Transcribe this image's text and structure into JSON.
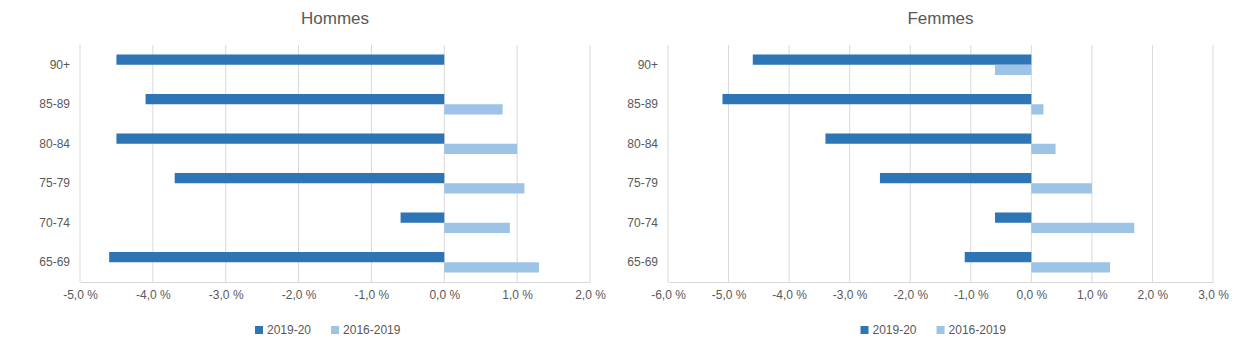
{
  "chart_data": [
    {
      "type": "bar",
      "title": "Hommes",
      "orientation": "horizontal",
      "grid": true,
      "legend": "bottom",
      "categories": [
        "90+",
        "85-89",
        "80-84",
        "75-79",
        "70-74",
        "65-69"
      ],
      "series": [
        {
          "name": "2019-20",
          "color": "#2e75b6",
          "values": [
            -4.5,
            -4.1,
            -4.5,
            -3.7,
            -0.6,
            -4.6
          ]
        },
        {
          "name": "2016-2019",
          "color": "#9dc3e6",
          "values": [
            0,
            0.8,
            1.0,
            1.1,
            0.9,
            1.3
          ]
        }
      ],
      "xlim": [
        -5,
        2
      ],
      "xticks": [
        {
          "value": -5,
          "label": "-5,0 %"
        },
        {
          "value": -4,
          "label": "-4,0 %"
        },
        {
          "value": -3,
          "label": "-3,0 %"
        },
        {
          "value": -2,
          "label": "-2,0 %"
        },
        {
          "value": -1,
          "label": "-1,0 %"
        },
        {
          "value": 0,
          "label": "0,0 %"
        },
        {
          "value": 1,
          "label": "1,0 %"
        },
        {
          "value": 2,
          "label": "2,0 %"
        }
      ]
    },
    {
      "type": "bar",
      "title": "Femmes",
      "orientation": "horizontal",
      "grid": true,
      "legend": "bottom",
      "categories": [
        "90+",
        "85-89",
        "80-84",
        "75-79",
        "70-74",
        "65-69"
      ],
      "series": [
        {
          "name": "2019-20",
          "color": "#2e75b6",
          "values": [
            -4.6,
            -5.1,
            -3.4,
            -2.5,
            -0.6,
            -1.1
          ]
        },
        {
          "name": "2016-2019",
          "color": "#9dc3e6",
          "values": [
            -0.6,
            0.2,
            0.4,
            1.0,
            1.7,
            1.3
          ]
        }
      ],
      "xlim": [
        -6,
        3
      ],
      "xticks": [
        {
          "value": -6,
          "label": "-6,0 %"
        },
        {
          "value": -5,
          "label": "-5,0 %"
        },
        {
          "value": -4,
          "label": "-4,0 %"
        },
        {
          "value": -3,
          "label": "-3,0 %"
        },
        {
          "value": -2,
          "label": "-2,0 %"
        },
        {
          "value": -1,
          "label": "-1,0 %"
        },
        {
          "value": 0,
          "label": "0,0 %"
        },
        {
          "value": 1,
          "label": "1,0 %"
        },
        {
          "value": 2,
          "label": "2,0 %"
        },
        {
          "value": 3,
          "label": "3,0 %"
        }
      ]
    }
  ]
}
